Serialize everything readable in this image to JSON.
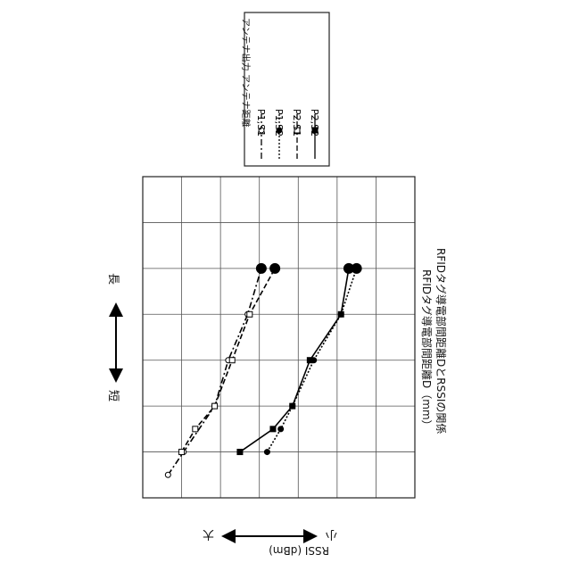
{
  "chart_data": {
    "type": "line",
    "xlabel": "RFIDタグ導電部間距離D（mm）",
    "ylabel": "RSSI (dBm)",
    "caption": "RFIDタグ導電部間距離DとRSSIの関係",
    "x_direction": {
      "short_label": "短",
      "long_label": "長"
    },
    "y_direction": {
      "small_label": "小",
      "large_label": "大"
    },
    "legend_header": {
      "power": "アンテナ出力",
      "distance": "アンテナ距離"
    },
    "xlim": [
      0,
      7
    ],
    "ylim": [
      0,
      7
    ],
    "grid": true,
    "legend_position": "top-right",
    "series": [
      {
        "name": "P1,S1",
        "marker": "open-circle",
        "line": "dash-dot",
        "x": [
          0.5,
          1,
          2,
          3,
          4,
          5,
          5
        ],
        "y": [
          0.65,
          1.05,
          1.85,
          2.2,
          2.7,
          3.05,
          3.05
        ]
      },
      {
        "name": "P1,S2",
        "marker": "filled-circle",
        "line": "dotted",
        "x": [
          1,
          1.5,
          2,
          3,
          4,
          5,
          5
        ],
        "y": [
          3.2,
          3.55,
          3.85,
          4.4,
          5.1,
          5.5,
          5.5
        ]
      },
      {
        "name": "P2,S1",
        "marker": "open-square",
        "line": "dashed",
        "x": [
          1,
          1.5,
          2,
          3,
          4,
          5,
          5
        ],
        "y": [
          1.0,
          1.35,
          1.85,
          2.3,
          2.75,
          3.4,
          3.4
        ]
      },
      {
        "name": "P2,S2",
        "marker": "filled-square",
        "line": "solid",
        "x": [
          1,
          1.5,
          2,
          3,
          4,
          5,
          5
        ],
        "y": [
          2.5,
          3.35,
          3.85,
          4.3,
          5.1,
          5.3,
          5.3
        ]
      }
    ]
  }
}
